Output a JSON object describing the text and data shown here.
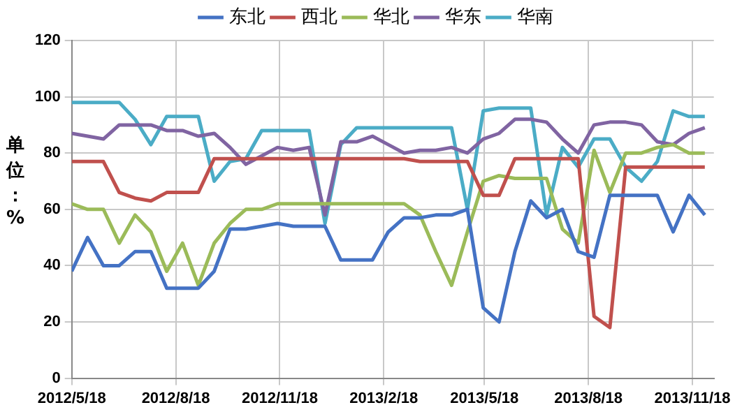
{
  "chart_data": {
    "type": "line",
    "ylabel": "单位：%",
    "x": [
      "2012-05-18",
      "2012-06-01",
      "2012-06-15",
      "2012-06-29",
      "2012-07-13",
      "2012-07-27",
      "2012-08-10",
      "2012-08-24",
      "2012-09-07",
      "2012-09-21",
      "2012-10-05",
      "2012-10-19",
      "2012-11-02",
      "2012-11-16",
      "2012-11-30",
      "2012-12-14",
      "2012-12-28",
      "2013-01-11",
      "2013-01-25",
      "2013-02-08",
      "2013-02-22",
      "2013-03-08",
      "2013-03-22",
      "2013-04-05",
      "2013-04-19",
      "2013-05-03",
      "2013-05-17",
      "2013-05-31",
      "2013-06-14",
      "2013-06-28",
      "2013-07-12",
      "2013-07-26",
      "2013-08-09",
      "2013-08-23",
      "2013-09-06",
      "2013-09-20",
      "2013-10-04",
      "2013-10-18",
      "2013-11-01",
      "2013-11-15",
      "2013-11-29"
    ],
    "series": [
      {
        "name": "东北",
        "color": "#4472c4",
        "values": [
          38,
          50,
          40,
          40,
          45,
          45,
          32,
          32,
          32,
          38,
          53,
          53,
          54,
          55,
          54,
          54,
          54,
          42,
          42,
          42,
          52,
          57,
          57,
          58,
          58,
          60,
          25,
          20,
          45,
          63,
          57,
          60,
          45,
          43,
          65,
          65,
          65,
          65,
          52,
          65,
          58
        ]
      },
      {
        "name": "西北",
        "color": "#c0504d",
        "values": [
          77,
          77,
          77,
          66,
          64,
          63,
          66,
          66,
          66,
          78,
          78,
          78,
          78,
          78,
          78,
          78,
          78,
          78,
          78,
          78,
          78,
          78,
          77,
          77,
          77,
          77,
          65,
          65,
          78,
          78,
          78,
          78,
          78,
          22,
          18,
          75,
          75,
          75,
          75,
          75,
          75
        ]
      },
      {
        "name": "华北",
        "color": "#9bbb59",
        "values": [
          62,
          60,
          60,
          48,
          58,
          52,
          38,
          48,
          33,
          48,
          55,
          60,
          60,
          62,
          62,
          62,
          62,
          62,
          62,
          62,
          62,
          62,
          58,
          45,
          33,
          52,
          70,
          72,
          71,
          71,
          71,
          53,
          48,
          81,
          66,
          80,
          80,
          82,
          83,
          80,
          80
        ]
      },
      {
        "name": "华东",
        "color": "#8064a2",
        "values": [
          87,
          86,
          85,
          90,
          90,
          90,
          88,
          88,
          86,
          87,
          82,
          76,
          79,
          82,
          81,
          82,
          58,
          84,
          84,
          86,
          83,
          80,
          81,
          81,
          82,
          80,
          85,
          87,
          92,
          92,
          91,
          85,
          80,
          90,
          91,
          91,
          90,
          84,
          83,
          87,
          89
        ]
      },
      {
        "name": "华南",
        "color": "#4bacc6",
        "values": [
          98,
          98,
          98,
          98,
          92,
          83,
          93,
          93,
          93,
          70,
          77,
          78,
          88,
          88,
          88,
          88,
          55,
          83,
          89,
          89,
          89,
          89,
          89,
          89,
          89,
          60,
          95,
          96,
          96,
          96,
          58,
          82,
          75,
          85,
          85,
          75,
          70,
          77,
          95,
          93,
          93
        ]
      }
    ],
    "xlim": [
      "2012-05-18",
      "2013-12-07"
    ],
    "xticks": [
      {
        "value": "2012-05-18",
        "label": "2012/5/18"
      },
      {
        "value": "2012-08-18",
        "label": "2012/8/18"
      },
      {
        "value": "2012-11-18",
        "label": "2012/11/18"
      },
      {
        "value": "2013-02-18",
        "label": "2013/2/18"
      },
      {
        "value": "2013-05-18",
        "label": "2013/5/18"
      },
      {
        "value": "2013-08-18",
        "label": "2013/8/18"
      },
      {
        "value": "2013-11-18",
        "label": "2013/11/18"
      }
    ],
    "ylim": [
      0,
      120
    ],
    "yticks": [
      0,
      20,
      40,
      60,
      80,
      100,
      120
    ],
    "grid": true,
    "legend": "top",
    "marker": "none",
    "line_style": "solid"
  }
}
